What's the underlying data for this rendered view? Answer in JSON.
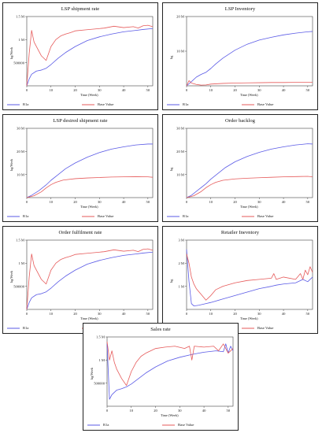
{
  "chart_data": [
    {
      "type": "line",
      "title": "LSP shipment rate",
      "xlabel": "Time (Week)",
      "ylabel": "kg/Week",
      "xlim": [
        0,
        52
      ],
      "ylim": [
        0,
        1500000
      ],
      "yticks": [
        500000,
        1000000,
        1500000
      ],
      "ytick_labels": [
        "500000",
        "1 M",
        "1.5 M"
      ],
      "xticks": [
        0,
        10,
        20,
        30,
        40,
        50
      ],
      "series": [
        {
          "name": "R1a",
          "color": "#5a5ae6",
          "x": [
            0,
            1,
            2,
            4,
            6,
            8,
            10,
            13,
            16,
            20,
            25,
            30,
            35,
            40,
            45,
            48,
            52
          ],
          "y": [
            0,
            150000,
            250000,
            320000,
            340000,
            380000,
            460000,
            600000,
            720000,
            850000,
            980000,
            1060000,
            1120000,
            1170000,
            1200000,
            1220000,
            1240000
          ]
        },
        {
          "name": "Base Value",
          "color": "#e65a5a",
          "x": [
            0,
            1,
            2,
            3,
            4,
            6,
            8,
            10,
            12,
            14,
            16,
            18,
            20,
            24,
            28,
            32,
            36,
            40,
            44,
            46,
            48,
            50,
            52
          ],
          "y": [
            0,
            700000,
            1200000,
            950000,
            850000,
            650000,
            550000,
            850000,
            1000000,
            1080000,
            1120000,
            1150000,
            1190000,
            1210000,
            1230000,
            1250000,
            1290000,
            1260000,
            1280000,
            1250000,
            1300000,
            1310000,
            1280000
          ]
        }
      ]
    },
    {
      "type": "line",
      "title": "LSP Inventory",
      "xlabel": "Time (Week)",
      "ylabel": "kg",
      "xlim": [
        0,
        52
      ],
      "ylim": [
        0,
        20000000
      ],
      "yticks": [
        10000000,
        20000000
      ],
      "ytick_labels": [
        "10 M",
        "20 M"
      ],
      "xticks": [
        0,
        10,
        20,
        30,
        40,
        50
      ],
      "series": [
        {
          "name": "R1a",
          "color": "#5a5ae6",
          "x": [
            0,
            2,
            4,
            6,
            8,
            10,
            12,
            15,
            20,
            25,
            30,
            35,
            40,
            45,
            50,
            52
          ],
          "y": [
            0,
            1200000,
            2500000,
            3300000,
            3900000,
            5000000,
            6300000,
            8000000,
            10300000,
            12000000,
            13200000,
            14000000,
            14700000,
            15200000,
            15600000,
            15700000
          ]
        },
        {
          "name": "Base Value",
          "color": "#e65a5a",
          "x": [
            0,
            1,
            2,
            4,
            6,
            8,
            10,
            15,
            20,
            25,
            30,
            35,
            40,
            45,
            50,
            52
          ],
          "y": [
            0,
            1500000,
            800000,
            400000,
            200000,
            250000,
            500000,
            700000,
            800000,
            850000,
            900000,
            950000,
            950000,
            1000000,
            1000000,
            1000000
          ]
        }
      ]
    },
    {
      "type": "line",
      "title": "LSP desired shipment rate",
      "xlabel": "Time (Week)",
      "ylabel": "kg/Week",
      "xlim": [
        0,
        52
      ],
      "ylim": [
        0,
        30000000
      ],
      "yticks": [
        10000000,
        20000000,
        30000000
      ],
      "ytick_labels": [
        "10 M",
        "20 M",
        "30 M"
      ],
      "xticks": [
        0,
        10,
        20,
        30,
        40,
        50
      ],
      "series": [
        {
          "name": "R1a",
          "color": "#5a5ae6",
          "x": [
            0,
            2,
            5,
            8,
            10,
            13,
            16,
            20,
            25,
            30,
            35,
            40,
            45,
            50,
            52
          ],
          "y": [
            0,
            1000000,
            3000000,
            5500000,
            7500000,
            10000000,
            12500000,
            15000000,
            17500000,
            19500000,
            21000000,
            22000000,
            22800000,
            23200000,
            23200000
          ]
        },
        {
          "name": "Base Value",
          "color": "#e65a5a",
          "x": [
            0,
            3,
            6,
            8,
            10,
            12,
            15,
            20,
            25,
            30,
            35,
            40,
            45,
            50,
            52
          ],
          "y": [
            0,
            800000,
            2500000,
            4200000,
            5600000,
            6600000,
            7600000,
            8200000,
            8500000,
            8700000,
            8900000,
            9000000,
            9100000,
            9000000,
            8800000
          ]
        }
      ]
    },
    {
      "type": "line",
      "title": "Order backlog",
      "xlabel": "Time (Week)",
      "ylabel": "kg",
      "xlim": [
        0,
        52
      ],
      "ylim": [
        0,
        30000000
      ],
      "yticks": [
        10000000,
        20000000,
        30000000
      ],
      "ytick_labels": [
        "10 M",
        "20 M",
        "30 M"
      ],
      "xticks": [
        0,
        10,
        20,
        30,
        40,
        50
      ],
      "series": [
        {
          "name": "R1a",
          "color": "#5a5ae6",
          "x": [
            0,
            2,
            5,
            8,
            10,
            13,
            16,
            20,
            25,
            30,
            35,
            40,
            45,
            50,
            52
          ],
          "y": [
            0,
            1000000,
            3500000,
            6000000,
            8000000,
            10500000,
            13000000,
            15500000,
            17800000,
            19600000,
            21000000,
            22000000,
            22800000,
            23300000,
            23200000
          ]
        },
        {
          "name": "Base Value",
          "color": "#e65a5a",
          "x": [
            0,
            3,
            6,
            8,
            10,
            12,
            15,
            20,
            25,
            30,
            35,
            40,
            45,
            50,
            52
          ],
          "y": [
            0,
            800000,
            2600000,
            4300000,
            5600000,
            6600000,
            7500000,
            8100000,
            8400000,
            8600000,
            8800000,
            9000000,
            9100000,
            9200000,
            9000000
          ]
        }
      ]
    },
    {
      "type": "line",
      "title": "Order fulfilment rate",
      "xlabel": "Time (Week)",
      "ylabel": "kg/Week",
      "xlim": [
        0,
        52
      ],
      "ylim": [
        0,
        1500000
      ],
      "yticks": [
        500000,
        1000000,
        1500000
      ],
      "ytick_labels": [
        "500000",
        "1 M",
        "1.5 M"
      ],
      "xticks": [
        0,
        10,
        20,
        30,
        40,
        50
      ],
      "series": [
        {
          "name": "R1a",
          "color": "#5a5ae6",
          "x": [
            0,
            1,
            2,
            4,
            6,
            8,
            10,
            13,
            16,
            20,
            25,
            30,
            35,
            40,
            45,
            48,
            52
          ],
          "y": [
            0,
            150000,
            250000,
            320000,
            340000,
            380000,
            460000,
            600000,
            720000,
            850000,
            980000,
            1060000,
            1120000,
            1170000,
            1200000,
            1220000,
            1240000
          ]
        },
        {
          "name": "Base Value",
          "color": "#e65a5a",
          "x": [
            0,
            1,
            2,
            3,
            4,
            6,
            8,
            10,
            12,
            14,
            16,
            18,
            20,
            24,
            28,
            32,
            36,
            40,
            44,
            46,
            48,
            50,
            52
          ],
          "y": [
            0,
            700000,
            1200000,
            950000,
            850000,
            650000,
            550000,
            850000,
            1000000,
            1080000,
            1120000,
            1150000,
            1190000,
            1210000,
            1230000,
            1250000,
            1290000,
            1260000,
            1280000,
            1250000,
            1300000,
            1310000,
            1280000
          ]
        }
      ]
    },
    {
      "type": "line",
      "title": "Retailer Inevntory",
      "xlabel": "Time (Week)",
      "ylabel": "kg",
      "xlim": [
        0,
        52
      ],
      "ylim": [
        0,
        3000000
      ],
      "yticks": [
        1000000,
        2000000,
        3000000
      ],
      "ytick_labels": [
        "1 M",
        "2 M",
        "3 M"
      ],
      "xticks": [
        0,
        10,
        20,
        30,
        40,
        50
      ],
      "series": [
        {
          "name": "R1a",
          "color": "#5a5ae6",
          "x": [
            0,
            1,
            2,
            3,
            5,
            8,
            10,
            15,
            20,
            25,
            30,
            35,
            37,
            40,
            45,
            48,
            50,
            52
          ],
          "y": [
            2600000,
            1200000,
            250000,
            150000,
            180000,
            250000,
            300000,
            450000,
            600000,
            750000,
            900000,
            1000000,
            1050000,
            1100000,
            1150000,
            1300000,
            1200000,
            1400000
          ]
        },
        {
          "name": "Base Value",
          "color": "#e65a5a",
          "x": [
            0,
            1,
            2,
            3,
            4,
            6,
            8,
            10,
            12,
            15,
            20,
            25,
            30,
            35,
            36,
            37,
            40,
            45,
            47,
            48,
            49,
            50,
            51,
            52
          ],
          "y": [
            2400000,
            2000000,
            1400000,
            1100000,
            900000,
            650000,
            400000,
            600000,
            850000,
            1000000,
            1150000,
            1250000,
            1300000,
            1350000,
            1550000,
            1300000,
            1400000,
            1300000,
            1550000,
            1300000,
            1700000,
            1500000,
            1850000,
            1600000
          ]
        }
      ]
    },
    {
      "type": "line",
      "title": "Sales rate",
      "xlabel": "Time (Week)",
      "ylabel": "kg/Week",
      "xlim": [
        0,
        52
      ],
      "ylim": [
        0,
        1500000
      ],
      "yticks": [
        500000,
        1000000,
        1500000
      ],
      "ytick_labels": [
        "500000",
        "1 M",
        "1.5 M"
      ],
      "xticks": [
        0,
        10,
        20,
        30,
        40,
        50
      ],
      "series": [
        {
          "name": "R1a",
          "color": "#5a5ae6",
          "x": [
            0,
            1,
            2,
            4,
            6,
            8,
            10,
            13,
            16,
            20,
            25,
            30,
            35,
            38,
            40,
            45,
            48,
            49,
            50,
            51,
            52
          ],
          "y": [
            1350000,
            150000,
            250000,
            350000,
            380000,
            420000,
            480000,
            600000,
            720000,
            850000,
            980000,
            1060000,
            1120000,
            1150000,
            1170000,
            1200000,
            1180000,
            1350000,
            1150000,
            1300000,
            1200000
          ]
        },
        {
          "name": "Base Value",
          "color": "#e65a5a",
          "x": [
            0,
            1,
            2,
            3,
            4,
            6,
            8,
            10,
            12,
            14,
            16,
            18,
            20,
            24,
            28,
            32,
            34,
            35,
            36,
            40,
            44,
            46,
            48,
            50,
            52
          ],
          "y": [
            1400000,
            1000000,
            1200000,
            950000,
            800000,
            600000,
            450000,
            750000,
            950000,
            1080000,
            1150000,
            1200000,
            1250000,
            1280000,
            1300000,
            1250000,
            1300000,
            1000000,
            1300000,
            1280000,
            1300000,
            1200000,
            1350000,
            1150000,
            1250000
          ]
        }
      ]
    }
  ]
}
